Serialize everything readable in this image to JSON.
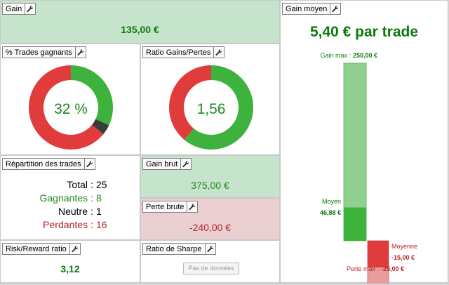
{
  "gain": {
    "title": "Gain",
    "value": "135,00 €"
  },
  "trades": {
    "title": "% Trades gagnants",
    "value": "32 %",
    "win_frac": 0.32,
    "neutral_frac": 0.04
  },
  "ratio": {
    "title": "Ratio Gains/Pertes",
    "value": "1,56",
    "win_frac": 0.61
  },
  "repartition": {
    "title": "Répartition des trades",
    "rows": [
      {
        "label": "Total",
        "value": "25"
      },
      {
        "label": "Gagnantes",
        "value": "8"
      },
      {
        "label": "Neutre",
        "value": "1"
      },
      {
        "label": "Perdantes",
        "value": "16"
      }
    ]
  },
  "gain_brut": {
    "title": "Gain brut",
    "value": "375,00 €"
  },
  "perte_brute": {
    "title": "Perte brute",
    "value": "-240,00 €"
  },
  "risk": {
    "title": "Risk/Reward ratio",
    "value": "3,12"
  },
  "sharpe": {
    "title": "Ratio de Sharpe",
    "no_data": "Pas de données"
  },
  "gain_moyen": {
    "title": "Gain moyen",
    "headline": "5,40 € par trade",
    "gain_max_label": "Gain max :",
    "gain_max_value": "250,00 €",
    "moyen_label": "Moyen",
    "moyen_value": "46,88 €",
    "moyenne_label": "Moyenne",
    "moyenne_value": "-15,00 €",
    "perte_max_label": "Perte max :",
    "perte_max_value": "-25,00 €",
    "gain_max_num": 250,
    "gain_moyen_num": 46.88,
    "perte_max_num": 25,
    "perte_moyenne_num": 15
  },
  "colors": {
    "green": "#3db23d",
    "red": "#e03c3c",
    "dark": "#3a3a3a",
    "light_green": "#8fd08f",
    "light_red": "#e89c9c"
  },
  "icons": {
    "panel_settings": "wrench-icon"
  }
}
